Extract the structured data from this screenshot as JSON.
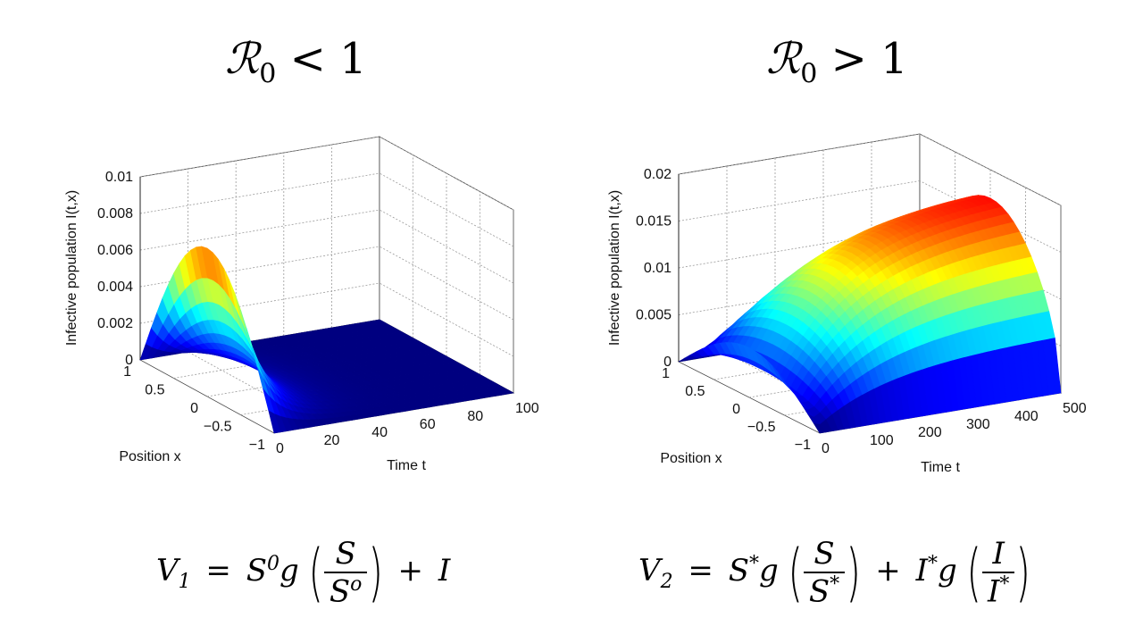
{
  "headings": {
    "left": {
      "symbol": "ℛ",
      "sub": "0",
      "rel": "< 1"
    },
    "right": {
      "symbol": "ℛ",
      "sub": "0",
      "rel": "> 1"
    }
  },
  "chart_data": [
    {
      "type": "surface",
      "zlabel": "Infective population I(t,x)",
      "xlabel": "Time t",
      "ylabel": "Position x",
      "t_range": [
        0,
        100
      ],
      "x_range": [
        -1,
        1
      ],
      "zlim": [
        0,
        0.01
      ],
      "t_ticks": [
        "0",
        "20",
        "40",
        "60",
        "80",
        "100"
      ],
      "x_ticks": [
        "1",
        "0.5",
        "0",
        "−0.5",
        "−1"
      ],
      "z_ticks": [
        "0",
        "0.002",
        "0.004",
        "0.006",
        "0.008",
        "0.01"
      ],
      "peak": 0.0081,
      "decay_time": 10,
      "grid": true,
      "colormap": "jet"
    },
    {
      "type": "surface",
      "zlabel": "Infective population I(t,x)",
      "xlabel": "Time t",
      "ylabel": "Position x",
      "t_range": [
        0,
        500
      ],
      "x_range": [
        -1,
        1
      ],
      "zlim": [
        0,
        0.02
      ],
      "t_ticks": [
        "0",
        "100",
        "200",
        "300",
        "400",
        "500"
      ],
      "x_ticks": [
        "1",
        "0.5",
        "0",
        "−0.5",
        "−1"
      ],
      "z_ticks": [
        "0",
        "0.005",
        "0.01",
        "0.015",
        "0.02"
      ],
      "initial_peak": 0.0053,
      "final_peak": 0.0175,
      "grid": true,
      "colormap": "jet"
    }
  ],
  "formulas": {
    "left": {
      "lhs": "V",
      "lhs_sub": "1",
      "eq": "=",
      "s": "S",
      "s_sup": "0",
      "g": "g",
      "num": "S",
      "den": "S",
      "den_sup": "o",
      "plus": "+",
      "tail": "I"
    },
    "right": {
      "lhs": "V",
      "lhs_sub": "2",
      "eq": "=",
      "s": "S",
      "s_sup": "*",
      "g": "g",
      "num": "S",
      "den": "S",
      "den_sup": "*",
      "plus": "+",
      "i": "I",
      "i_sup": "*",
      "g2": "g",
      "num2": "I",
      "den2": "I",
      "den2_sup": "*"
    }
  }
}
